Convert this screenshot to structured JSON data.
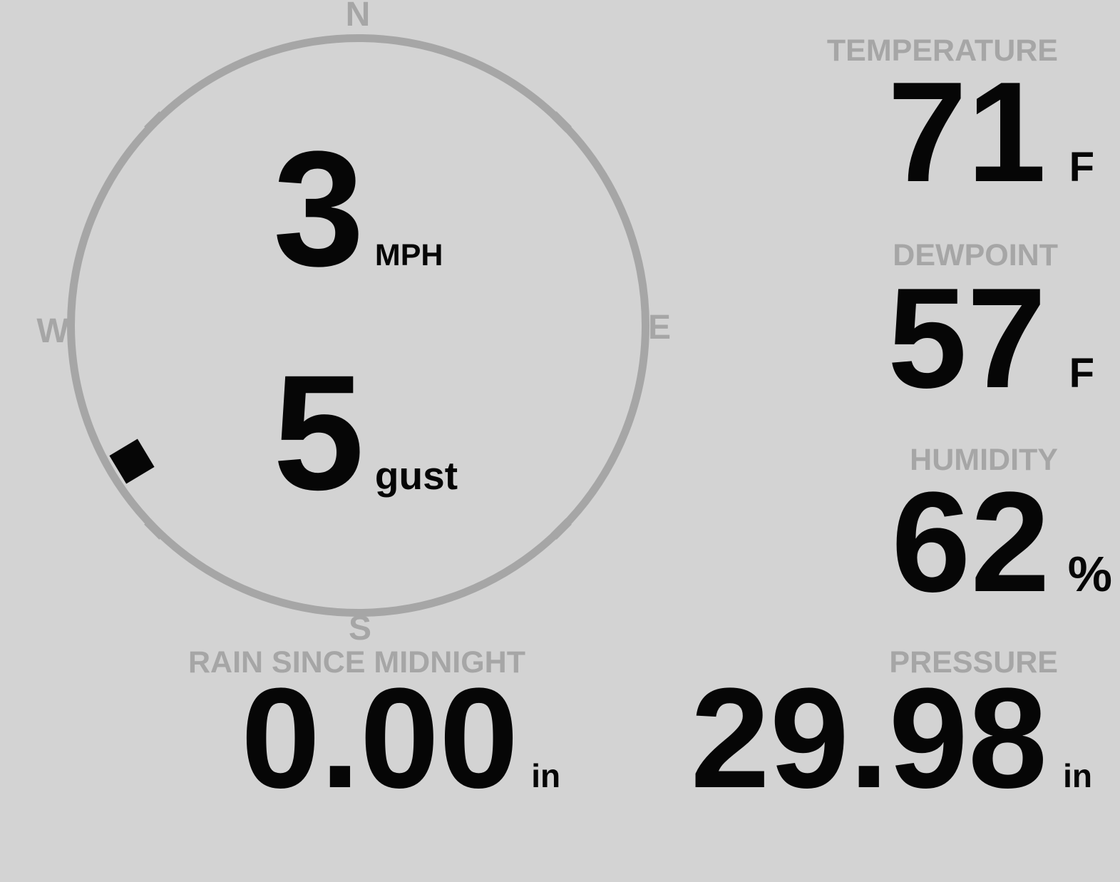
{
  "colors": {
    "background": "#d3d3d3",
    "muted": "#a6a6a6",
    "ink": "#060606"
  },
  "compass": {
    "cardinals": {
      "north": "N",
      "east": "E",
      "south": "S",
      "west": "W"
    },
    "wind": {
      "speed": "3",
      "speed_unit": "MPH",
      "gust": "5",
      "gust_unit": "gust",
      "direction_deg": 239
    }
  },
  "metrics": {
    "temperature": {
      "label": "TEMPERATURE",
      "value": "71",
      "unit": "F"
    },
    "dewpoint": {
      "label": "DEWPOINT",
      "value": "57",
      "unit": "F"
    },
    "humidity": {
      "label": "HUMIDITY",
      "value": "62",
      "unit": "%"
    },
    "rain": {
      "label": "RAIN SINCE MIDNIGHT",
      "value": "0.00",
      "unit": "in"
    },
    "pressure": {
      "label": "PRESSURE",
      "value": "29.98",
      "unit": "in"
    }
  }
}
